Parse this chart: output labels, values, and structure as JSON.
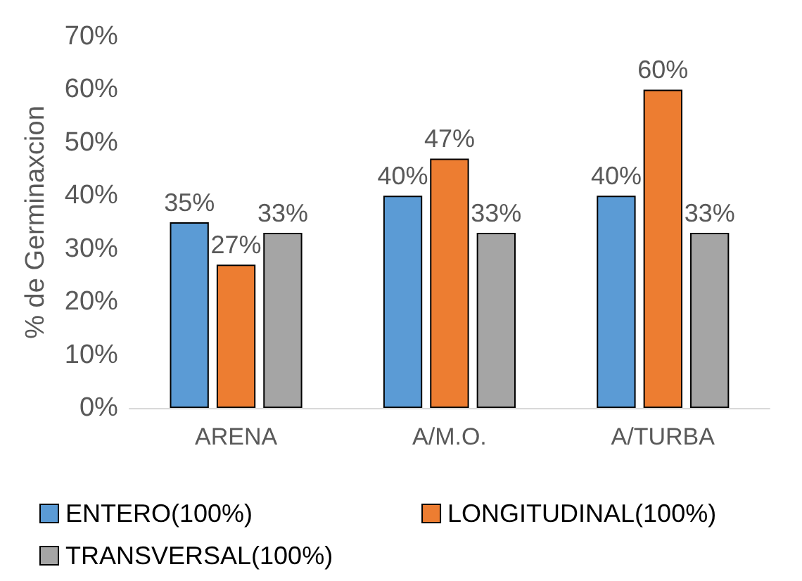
{
  "chart_data": {
    "type": "bar",
    "ylabel": "% de Germinaxcion",
    "categories": [
      "ARENA",
      "A/M.O.",
      "A/TURBA"
    ],
    "series": [
      {
        "name": "ENTERO(100%)",
        "color": "#5b9bd5",
        "values": [
          35,
          40,
          40
        ],
        "value_labels": [
          "35%",
          "40%",
          "40%"
        ]
      },
      {
        "name": "LONGITUDINAL(100%)",
        "color": "#ed7d31",
        "values": [
          27,
          47,
          60
        ],
        "value_labels": [
          "27%",
          "47%",
          "60%"
        ]
      },
      {
        "name": "TRANSVERSAL(100%)",
        "color": "#a5a5a5",
        "values": [
          33,
          33,
          33
        ],
        "value_labels": [
          "33%",
          "33%",
          "33%"
        ]
      }
    ],
    "ylim": [
      0,
      70
    ],
    "yticks": [
      {
        "value": 0,
        "label": "0%"
      },
      {
        "value": 10,
        "label": "10%"
      },
      {
        "value": 20,
        "label": "20%"
      },
      {
        "value": 30,
        "label": "30%"
      },
      {
        "value": 40,
        "label": "40%"
      },
      {
        "value": 50,
        "label": "50%"
      },
      {
        "value": 60,
        "label": "60%"
      },
      {
        "value": 70,
        "label": "70%"
      }
    ],
    "grid": false,
    "legend": "bottom"
  }
}
